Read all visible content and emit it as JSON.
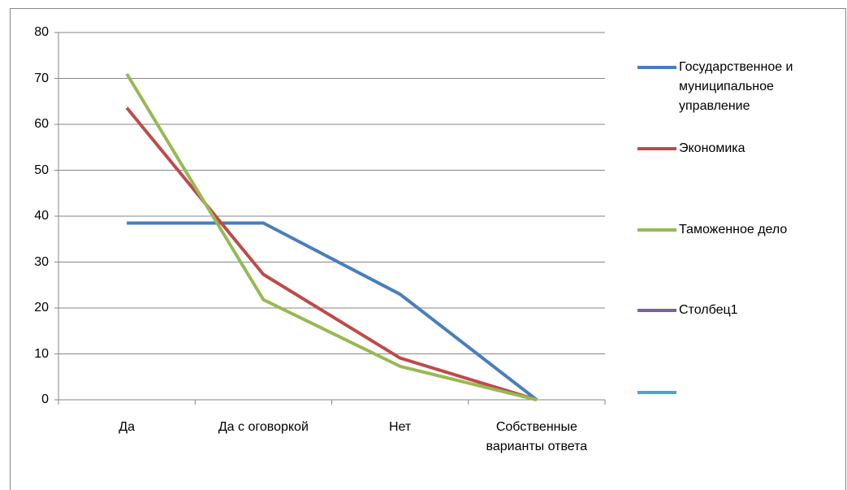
{
  "chart_data": {
    "type": "line",
    "categories": [
      "Да",
      "Да  с  оговоркой",
      "Нет",
      "Собственные варианты ответа"
    ],
    "series": [
      {
        "name": "Государственное  и муниципальное управление",
        "color": "#4a7ebb",
        "values": [
          38.5,
          38.5,
          23,
          0
        ]
      },
      {
        "name": "Экономика",
        "color": "#be4b48",
        "values": [
          63.6,
          27.3,
          9.1,
          0
        ]
      },
      {
        "name": "Таможенное  дело",
        "color": "#98b954",
        "values": [
          71,
          21.8,
          7.3,
          0
        ]
      },
      {
        "name": "Столбец1",
        "color": "#7d60a0",
        "values": [
          null,
          null,
          null,
          null
        ]
      },
      {
        "name": null,
        "color": "#46aac5",
        "values": [
          null,
          null,
          null,
          null
        ]
      }
    ],
    "ylim": [
      0,
      80
    ],
    "yticks": [
      0,
      10,
      20,
      30,
      40,
      50,
      60,
      70,
      80
    ],
    "grid": true,
    "legend": "right"
  }
}
